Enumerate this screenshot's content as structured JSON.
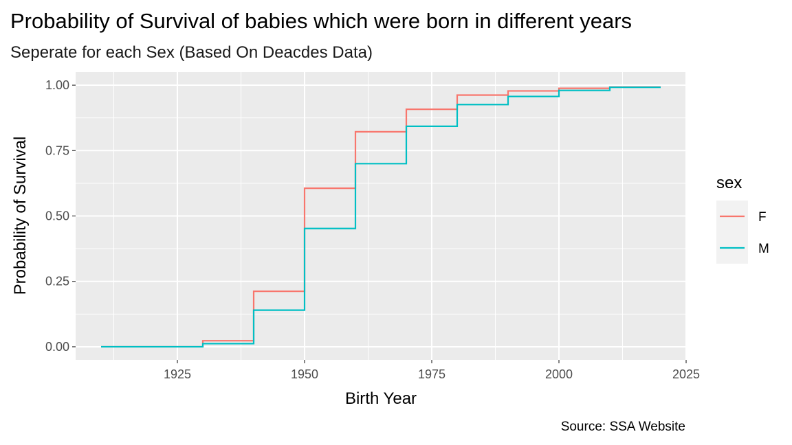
{
  "chart_data": {
    "type": "line",
    "step": "horizontal-then-vertical",
    "title": "Probability of Survival of babies which were born in different years",
    "subtitle": "Seperate for each Sex (Based On Deacdes Data)",
    "xlabel": "Birth Year",
    "ylabel": "Probability of Survival",
    "caption": "Source: SSA Website",
    "xlim": [
      1905,
      2025
    ],
    "ylim": [
      -0.05,
      1.05
    ],
    "x_ticks": [
      1925,
      1950,
      1975,
      2000,
      2025
    ],
    "x_tick_labels": [
      "1925",
      "1950",
      "1975",
      "2000",
      "2025"
    ],
    "y_ticks": [
      0,
      0.25,
      0.5,
      0.75,
      1.0
    ],
    "y_tick_labels": [
      "0.00",
      "0.25",
      "0.50",
      "0.75",
      "1.00"
    ],
    "grid": true,
    "legend": {
      "title": "sex",
      "position": "right"
    },
    "x": [
      1910,
      1920,
      1930,
      1940,
      1950,
      1960,
      1970,
      1980,
      1990,
      2000,
      2010,
      2020
    ],
    "series": [
      {
        "name": "F",
        "color": "#F8766D",
        "values": [
          0.0,
          0.0,
          0.023,
          0.212,
          0.606,
          0.822,
          0.908,
          0.962,
          0.978,
          0.988,
          0.993,
          0.993
        ]
      },
      {
        "name": "M",
        "color": "#00BFC4",
        "values": [
          0.0,
          0.0,
          0.012,
          0.14,
          0.452,
          0.7,
          0.843,
          0.926,
          0.957,
          0.98,
          0.992,
          0.992
        ]
      }
    ]
  }
}
